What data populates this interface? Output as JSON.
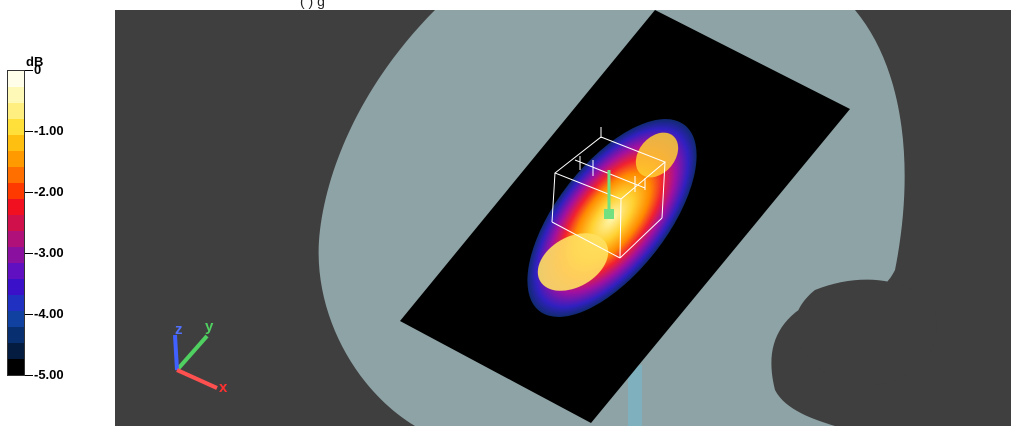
{
  "header": {
    "text": "(                )                    g"
  },
  "legend": {
    "unit": "dB",
    "ticks": [
      "0",
      "-1.00",
      "-2.00",
      "-3.00",
      "-4.00",
      "-5.00"
    ],
    "colors": [
      "#fffee8",
      "#fff9b8",
      "#ffef80",
      "#ffdf3a",
      "#ffbf10",
      "#ff9a00",
      "#ff6f00",
      "#ff3a00",
      "#f01020",
      "#d0104a",
      "#b0107a",
      "#8a10a0",
      "#6010c0",
      "#3a10c8",
      "#2030c0",
      "#1040a0",
      "#083070",
      "#041c40",
      "#000000"
    ]
  },
  "scene": {
    "background": "#3f3f3f",
    "head_color": "#8ea3a6",
    "plane_color": "#000000",
    "axes": {
      "x": "x",
      "y": "y",
      "z": "z"
    }
  }
}
